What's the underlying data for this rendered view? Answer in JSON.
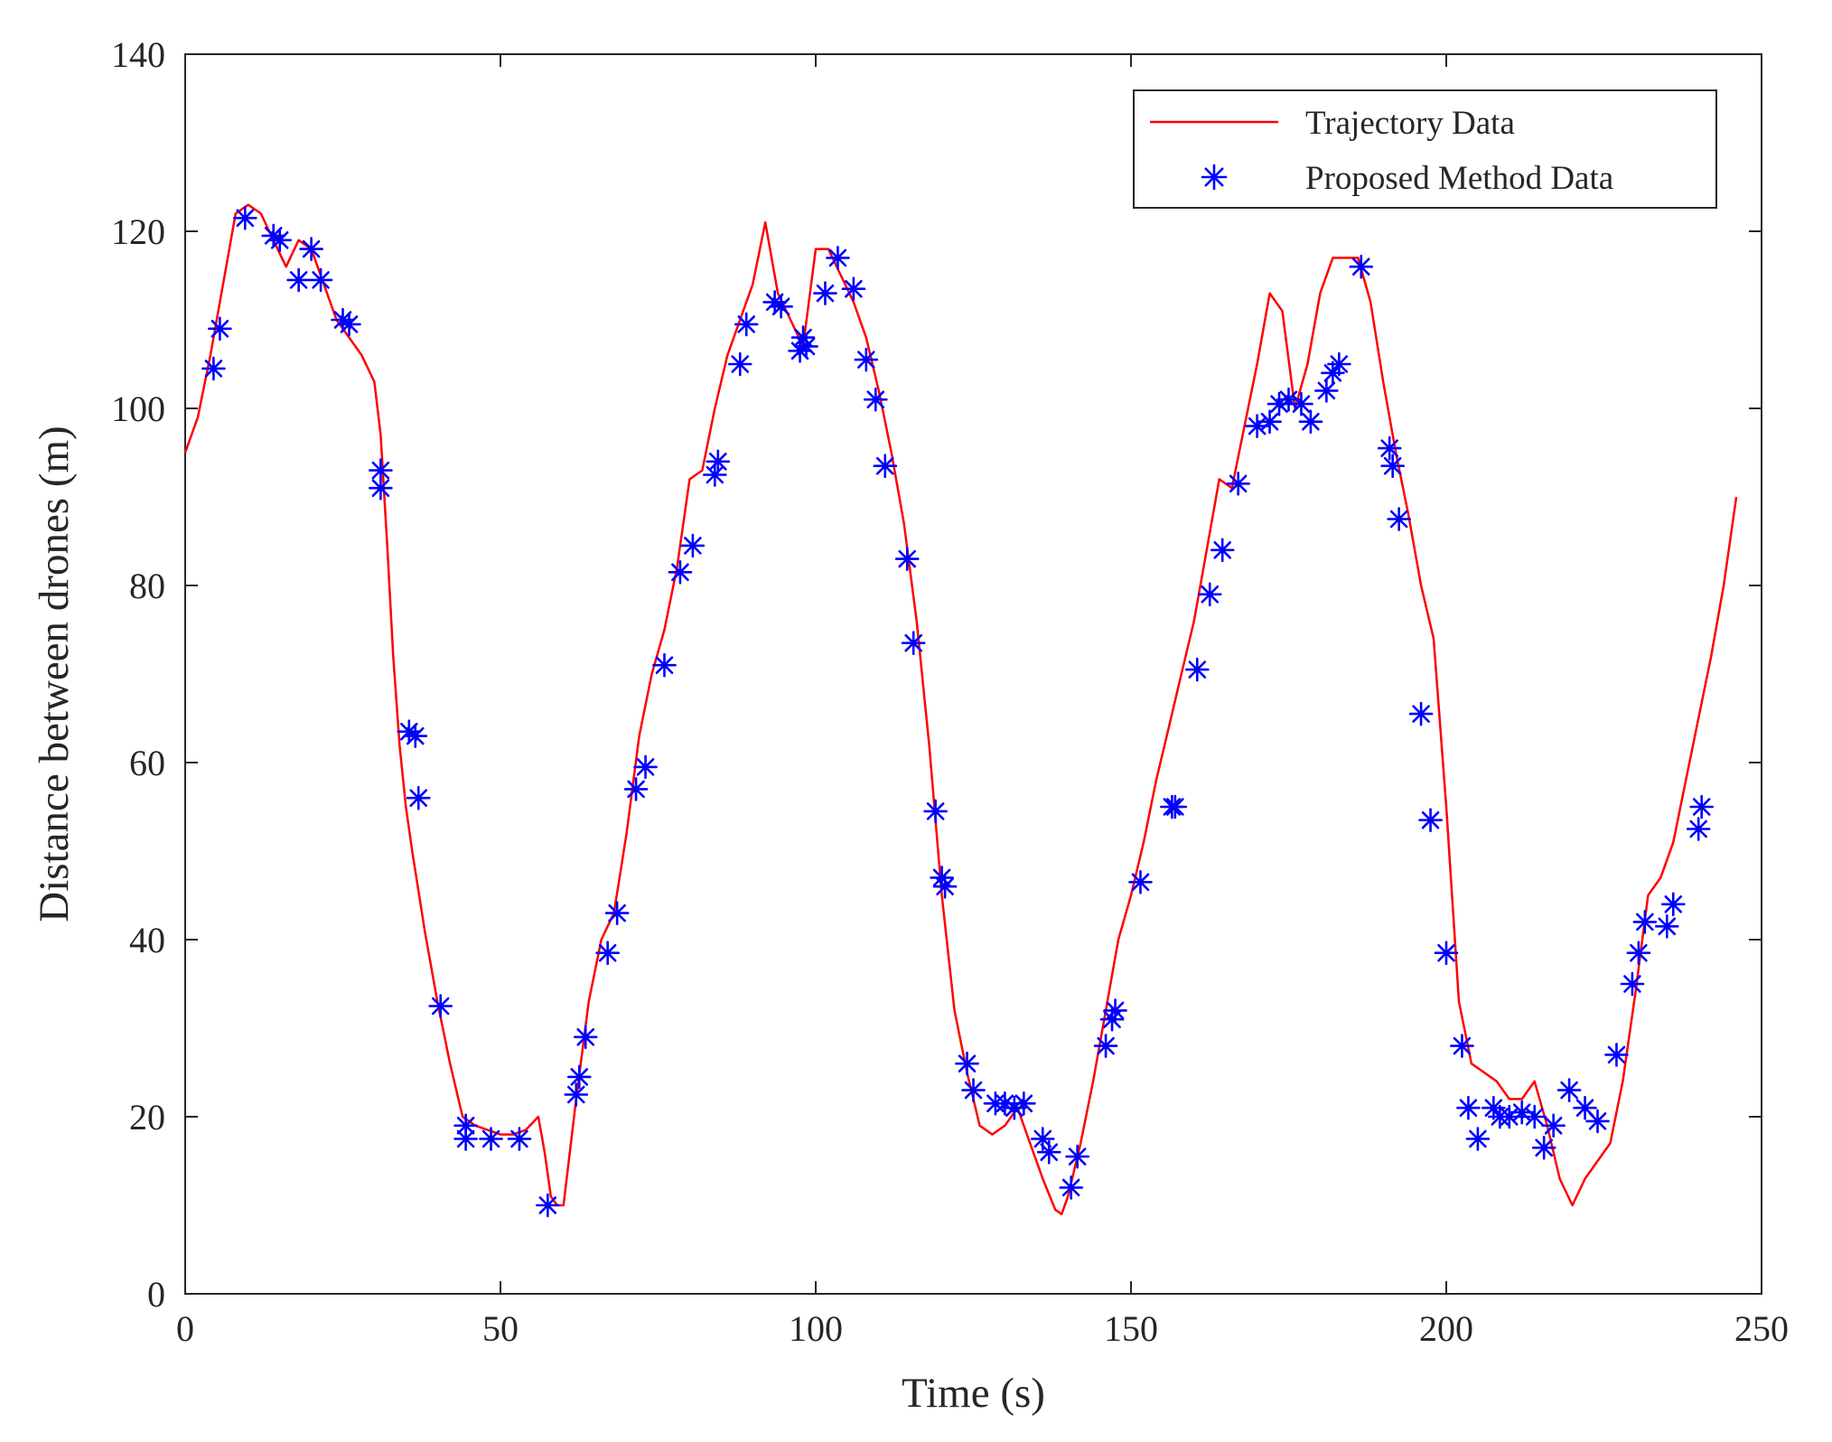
{
  "chart_data": {
    "type": "line",
    "xlabel": "Time (s)",
    "ylabel": "Distance between drones (m)",
    "xlim": [
      0,
      250
    ],
    "ylim": [
      0,
      140
    ],
    "xticks": [
      0,
      50,
      100,
      150,
      200,
      250
    ],
    "yticks": [
      0,
      20,
      40,
      60,
      80,
      100,
      120,
      140
    ],
    "grid": false,
    "legend_position": "top-right",
    "series": [
      {
        "name": "Trajectory Data",
        "style": "line",
        "color": "#ff0000",
        "x": [
          0,
          2,
          4,
          6,
          8,
          10,
          12,
          14,
          16,
          18,
          20,
          22,
          24,
          26,
          28,
          30,
          31,
          32,
          33,
          34,
          35,
          36,
          38,
          40,
          42,
          44,
          46,
          48,
          50,
          52,
          54,
          56,
          57,
          58,
          59,
          60,
          62,
          64,
          66,
          68,
          70,
          72,
          74,
          76,
          78,
          80,
          82,
          84,
          86,
          88,
          90,
          92,
          94,
          96,
          98,
          100,
          102,
          104,
          106,
          108,
          110,
          112,
          114,
          116,
          118,
          120,
          122,
          124,
          126,
          128,
          130,
          132,
          134,
          136,
          138,
          139,
          140,
          142,
          144,
          146,
          148,
          150,
          152,
          154,
          156,
          158,
          160,
          162,
          164,
          166,
          168,
          170,
          172,
          174,
          176,
          178,
          180,
          182,
          184,
          186,
          188,
          190,
          192,
          194,
          196,
          198,
          200,
          202,
          204,
          206,
          208,
          210,
          212,
          214,
          216,
          218,
          220,
          222,
          224,
          226,
          228,
          230,
          232,
          234,
          236,
          238,
          240,
          242,
          244,
          246
        ],
        "y": [
          95,
          99,
          106,
          114,
          122,
          123,
          122,
          119,
          116,
          119,
          118,
          114,
          110,
          108,
          106,
          103,
          97,
          85,
          72,
          62,
          55,
          50,
          41,
          33,
          26,
          20,
          19,
          18.5,
          18,
          18,
          18.5,
          20,
          16,
          11,
          10,
          10,
          22,
          33,
          40,
          43,
          52,
          63,
          70,
          75,
          82,
          92,
          93,
          100,
          106,
          110,
          114,
          121,
          113,
          110,
          107,
          118,
          118,
          115,
          112,
          108,
          102,
          95,
          87,
          76,
          62,
          45,
          32,
          25,
          19,
          18,
          19,
          21,
          17,
          13,
          9.5,
          9,
          11,
          17,
          24,
          32,
          40,
          45,
          51,
          58,
          64,
          70,
          76,
          84,
          92,
          91,
          98,
          105,
          113,
          111,
          100,
          105,
          113,
          117,
          117,
          117,
          112,
          103,
          95,
          88,
          80,
          74,
          55,
          33,
          26,
          25,
          24,
          22,
          22,
          24,
          19,
          13,
          10,
          13,
          15,
          17,
          24,
          34,
          45,
          47,
          51,
          58,
          65,
          72,
          80,
          90
        ]
      },
      {
        "name": "Proposed Method Data",
        "style": "markers",
        "color": "#0000ff",
        "x": [
          4.5,
          5.5,
          9.5,
          14,
          15,
          18,
          20,
          21.5,
          25,
          26,
          31,
          31,
          35.5,
          36.5,
          37,
          40.5,
          44.5,
          44.5,
          48.5,
          53,
          57.5,
          62,
          62.5,
          63.5,
          67,
          68.5,
          71.5,
          73,
          76,
          78.5,
          80.5,
          84,
          84.5,
          88,
          89,
          93.5,
          94.5,
          97.5,
          98,
          98.5,
          101.5,
          103.5,
          106,
          108,
          109.5,
          111,
          114.5,
          115.5,
          119,
          120,
          120.5,
          124,
          125,
          128.5,
          130,
          131.5,
          133,
          136,
          137,
          140.5,
          141.5,
          146,
          147,
          147.5,
          151.5,
          156.5,
          157,
          160.5,
          162.5,
          164.5,
          167,
          170,
          172,
          173.5,
          175,
          177,
          178.5,
          181,
          182,
          183,
          186.5,
          191,
          191.5,
          192.5,
          196,
          197.5,
          200,
          202.5,
          203.5,
          205,
          207.5,
          208.5,
          210,
          212,
          214,
          215.5,
          217,
          219.5,
          222,
          224,
          227,
          229.5,
          230.5,
          231.5,
          235,
          236,
          240,
          240.5
        ],
        "y": [
          104.5,
          109,
          121.5,
          119.5,
          119,
          114.5,
          118,
          114.5,
          110,
          109.5,
          93,
          91,
          63.5,
          63,
          56,
          32.5,
          19,
          17.5,
          17.5,
          17.5,
          10,
          22.5,
          24.5,
          29,
          38.5,
          43,
          57,
          59.5,
          71,
          81.5,
          84.5,
          92.5,
          94,
          105,
          109.5,
          112,
          111.5,
          106.5,
          108,
          107,
          113,
          117,
          113.5,
          105.5,
          101,
          93.5,
          83,
          73.5,
          54.5,
          47,
          46,
          26,
          23,
          21.5,
          21.5,
          21,
          21.5,
          17.5,
          16,
          12,
          15.5,
          28,
          31,
          32,
          46.5,
          55,
          55,
          70.5,
          79,
          84,
          91.5,
          98,
          98.5,
          100.5,
          101,
          100.5,
          98.5,
          102,
          104,
          105,
          116,
          95.5,
          93.5,
          87.5,
          65.5,
          53.5,
          38.5,
          28,
          21,
          17.5,
          21,
          20,
          20,
          20.5,
          20,
          16.5,
          19,
          23,
          21,
          19.5,
          27,
          35,
          38.5,
          42,
          41.5,
          44,
          52.5,
          55
        ]
      }
    ]
  }
}
